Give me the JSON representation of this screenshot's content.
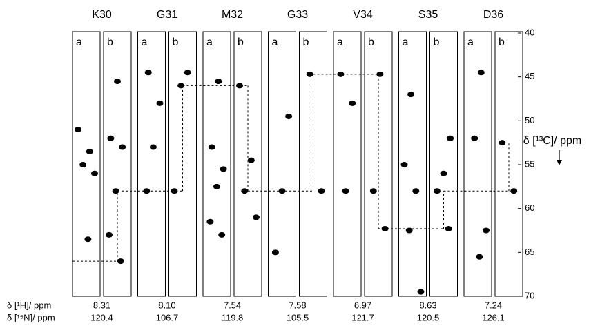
{
  "chart_data": {
    "type": "strip",
    "ylabel": "δ [¹³C]/ ppm",
    "ylim": [
      40,
      70
    ],
    "yticks": [
      40,
      45,
      50,
      55,
      60,
      65,
      70
    ],
    "y_inverted": true,
    "color": "#000000",
    "residues": [
      {
        "name": "K30",
        "strips": [
          {
            "label": "a",
            "peaks": [
              51,
              53.5,
              55,
              56,
              63.5
            ]
          },
          {
            "label": "b",
            "peaks": [
              45.5,
              52,
              53,
              58,
              63,
              66
            ]
          }
        ]
      },
      {
        "name": "G31",
        "strips": [
          {
            "label": "a",
            "peaks": [
              44.5,
              48,
              53,
              58
            ]
          },
          {
            "label": "b",
            "peaks": [
              44.5,
              46,
              58
            ]
          }
        ]
      },
      {
        "name": "M32",
        "strips": [
          {
            "label": "a",
            "peaks": [
              45.5,
              53,
              55.5,
              57.5,
              61.5,
              63
            ]
          },
          {
            "label": "b",
            "peaks": [
              46,
              54.5,
              58,
              61
            ]
          }
        ]
      },
      {
        "name": "G33",
        "strips": [
          {
            "label": "a",
            "peaks": [
              49.5,
              58,
              65
            ]
          },
          {
            "label": "b",
            "peaks": [
              44.7,
              58
            ]
          }
        ]
      },
      {
        "name": "V34",
        "strips": [
          {
            "label": "a",
            "peaks": [
              44.7,
              48,
              58
            ]
          },
          {
            "label": "b",
            "peaks": [
              44.7,
              58,
              62.3
            ]
          }
        ]
      },
      {
        "name": "S35",
        "strips": [
          {
            "label": "a",
            "peaks": [
              47,
              55,
              58,
              62.5,
              69.5
            ]
          },
          {
            "label": "b",
            "peaks": [
              52,
              56,
              58,
              62.3
            ]
          }
        ]
      },
      {
        "name": "D36",
        "strips": [
          {
            "label": "a",
            "peaks": [
              44.5,
              52,
              62.5,
              65.5
            ]
          },
          {
            "label": "b",
            "peaks": [
              52.5,
              58
            ]
          }
        ]
      }
    ],
    "sequential_walk": [
      66,
      58,
      46,
      58,
      44.7,
      62.3,
      58,
      52.5
    ],
    "rows": [
      {
        "label": "δ [¹H]/ ppm",
        "values": [
          8.31,
          8.1,
          7.54,
          7.58,
          6.97,
          8.63,
          7.24
        ],
        "value_labels": [
          "8.31",
          "8.10",
          "7.54",
          "7.58",
          "6.97",
          "8.63",
          "7.24"
        ]
      },
      {
        "label": "δ [¹⁵N]/ ppm",
        "values": [
          120.4,
          106.7,
          119.8,
          105.5,
          121.7,
          120.5,
          126.1
        ]
      }
    ]
  }
}
